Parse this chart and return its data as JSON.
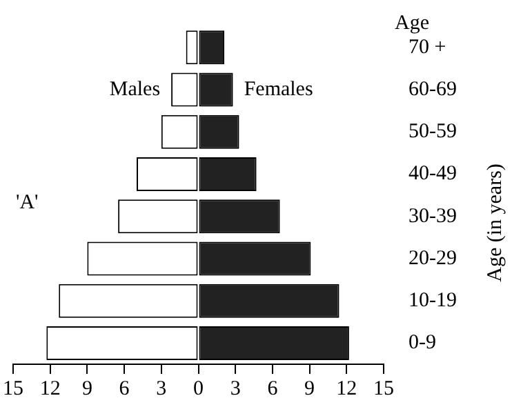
{
  "chart_data": {
    "type": "bar",
    "orientation": "horizontal",
    "stacked": true,
    "ylabel": "Age (in years)",
    "legend_title": "Age",
    "legend": false,
    "categories": [
      "70 +",
      "60-69",
      "50-59",
      "40-49",
      "30-39",
      "20-29",
      "10-19",
      "0-9"
    ],
    "series": [
      {
        "name": "Males",
        "color": "#ffffff",
        "values": [
          -1,
          -2.2,
          -3,
          -5,
          -6.5,
          -9,
          -11.3,
          -12.3
        ]
      },
      {
        "name": "Females",
        "color": "#222222",
        "values": [
          2.1,
          2.8,
          3.3,
          4.7,
          6.6,
          9.1,
          11.4,
          12.2
        ]
      }
    ],
    "xlim": [
      -15,
      15
    ],
    "xticks": [
      {
        "value": -15,
        "label": "15"
      },
      {
        "value": -12,
        "label": "12"
      },
      {
        "value": -9,
        "label": "9"
      },
      {
        "value": -6,
        "label": "6"
      },
      {
        "value": -3,
        "label": "3"
      },
      0,
      3,
      6,
      9,
      12,
      15
    ],
    "annotations": [
      "'A'"
    ]
  }
}
